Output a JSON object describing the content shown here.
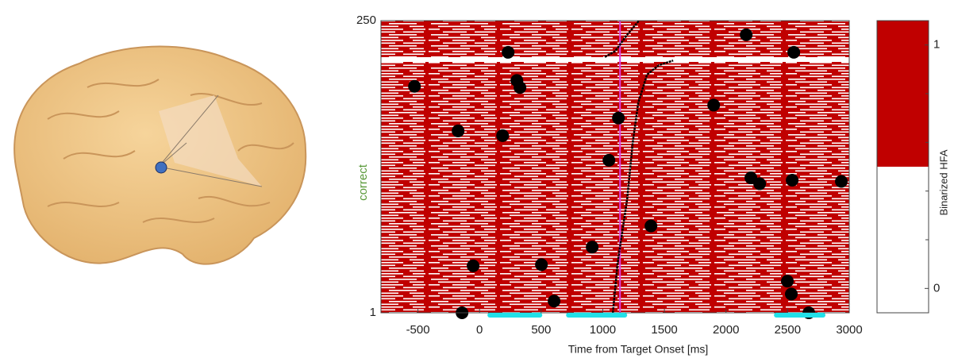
{
  "chart_data": {
    "type": "scatter",
    "xlabel": "Time from Target Onset [ms]",
    "ylabel": "correct",
    "ylabel_color": "#5a9a3a",
    "xlim": [
      -800,
      3000
    ],
    "xticks": [
      -500,
      0,
      500,
      1000,
      1500,
      2000,
      2500,
      3000
    ],
    "ylim": [
      1,
      250
    ],
    "yticks": [
      1,
      250
    ],
    "raster_color": "#c00000",
    "points": {
      "color": "#000000",
      "x": [
        -528,
        232,
        303,
        328,
        -174,
        187,
        1127,
        1050,
        1900,
        2164,
        2550,
        2202,
        2273,
        2537,
        2936,
        1391,
        914,
        -52,
        502,
        605,
        -142,
        2498,
        2530,
        2672
      ],
      "y": [
        194,
        223,
        199,
        193,
        156,
        152,
        167,
        131,
        178,
        238,
        223,
        116,
        111,
        114,
        113,
        75,
        57,
        41,
        42,
        11,
        1,
        28,
        17,
        1
      ]
    },
    "rt_lines": [
      {
        "color": "#000000",
        "x": [
          1082,
          1120,
          1198,
          1243,
          1288,
          1359,
          1455,
          1571
        ],
        "y": [
          1,
          43,
          98,
          146,
          180,
          204,
          212,
          216
        ]
      },
      {
        "color": "#000000",
        "x": [
          1017,
          1101,
          1198,
          1294
        ],
        "y": [
          219,
          224,
          238,
          250
        ]
      }
    ],
    "marker_line": {
      "x": 1140,
      "color": "#e040e0"
    },
    "significant_intervals": {
      "color": "#22e0e8",
      "ranges": [
        [
          64,
          509
        ],
        [
          702,
          1198
        ],
        [
          2389,
          2807
        ]
      ]
    },
    "colorbar": {
      "label": "Binarized HFA",
      "clim": [
        -0.1,
        1.1
      ],
      "ticks": [
        0,
        1
      ],
      "minor_ticks": [
        0.2,
        0.4,
        0.6,
        0.8
      ],
      "threshold": 0.5,
      "high_color": "#c00000",
      "low_color": "#ffffff"
    }
  }
}
